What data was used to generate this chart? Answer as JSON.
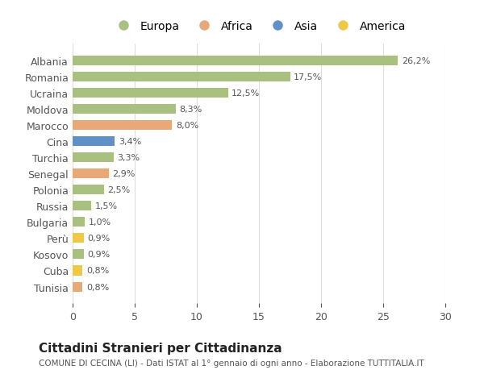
{
  "countries": [
    "Albania",
    "Romania",
    "Ucraina",
    "Moldova",
    "Marocco",
    "Cina",
    "Turchia",
    "Senegal",
    "Polonia",
    "Russia",
    "Bulgaria",
    "Perù",
    "Kosovo",
    "Cuba",
    "Tunisia"
  ],
  "values": [
    26.2,
    17.5,
    12.5,
    8.3,
    8.0,
    3.4,
    3.3,
    2.9,
    2.5,
    1.5,
    1.0,
    0.9,
    0.9,
    0.8,
    0.8
  ],
  "labels": [
    "26,2%",
    "17,5%",
    "12,5%",
    "8,3%",
    "8,0%",
    "3,4%",
    "3,3%",
    "2,9%",
    "2,5%",
    "1,5%",
    "1,0%",
    "0,9%",
    "0,9%",
    "0,8%",
    "0,8%"
  ],
  "continents": [
    "Europa",
    "Europa",
    "Europa",
    "Europa",
    "Africa",
    "Asia",
    "Europa",
    "Africa",
    "Europa",
    "Europa",
    "Europa",
    "America",
    "Europa",
    "America",
    "Africa"
  ],
  "colors": {
    "Europa": "#a8c080",
    "Africa": "#e8a878",
    "Asia": "#6090c8",
    "America": "#f0c848"
  },
  "legend_order": [
    "Europa",
    "Africa",
    "Asia",
    "America"
  ],
  "title": "Cittadini Stranieri per Cittadinanza",
  "subtitle": "COMUNE DI CECINA (LI) - Dati ISTAT al 1° gennaio di ogni anno - Elaborazione TUTTITALIA.IT",
  "xlim": [
    0,
    30
  ],
  "xticks": [
    0,
    5,
    10,
    15,
    20,
    25,
    30
  ],
  "background_color": "#ffffff",
  "bar_height": 0.6,
  "grid_color": "#dddddd",
  "text_color": "#555555",
  "label_color": "#555555"
}
